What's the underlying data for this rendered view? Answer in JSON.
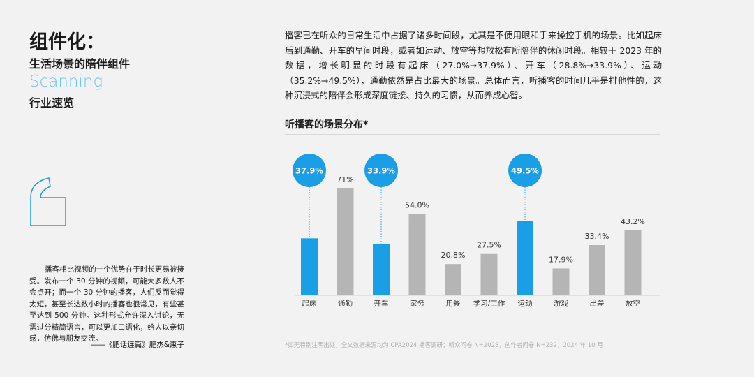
{
  "header": {
    "title": "组件化：",
    "subtitle": "生活场景的陪伴组件",
    "section_en": "Scanning",
    "section": "行业速览"
  },
  "quote": {
    "text": "播客相比视频的一个优势在于时长更易被接受。发布一个 30 分钟的视频，可能大多数人不会点开；而一个 30 分钟的播客，人们反而觉得太短，甚至长达数小时的播客也很常见，有些甚至达到 500 分钟。这种形式允许深入讨论，无需过分精简语言，可以更加口语化，给人以亲切感，仿佛与朋友交流。",
    "source": "——《肥话连篇》肥杰&惠子"
  },
  "body": "播客已在听众的日常生活中占据了诸多时间段，尤其是不便用眼和手来操控手机的场景。比如起床后到通勤、开车的早间时段，或者如运动、放空等想放松有所陪伴的休闲时段。相较于 2023 年的数据，增长明显的时段有起床（27.0%→37.9%）、开车（28.8%→33.9%）、运动（35.2%→49.5%），通勤依然是占比最大的场景。总体而言，听播客的时间几乎是排他性的，这种沉浸式的陪伴会形成深度链接、持久的习惯，从而养成心智。",
  "footnote": "*如无特别注明出处，全文数据来源均为 CPA2024 播客调研；听众问卷 N=2028，创作者问卷 N=232，2024 年 10 月",
  "chart_data": {
    "type": "bar",
    "title": "听播客的场景分布*",
    "categories": [
      "起床",
      "通勤",
      "开车",
      "家务",
      "用餐",
      "学习/工作",
      "运动",
      "游戏",
      "出差",
      "放空"
    ],
    "values": [
      37.9,
      71,
      33.9,
      54.0,
      20.8,
      27.5,
      49.5,
      17.9,
      33.4,
      43.2
    ],
    "value_labels": [
      "37.9%",
      "71%",
      "33.9%",
      "54.0%",
      "20.8%",
      "27.5%",
      "49.5%",
      "17.9%",
      "33.4%",
      "43.2%"
    ],
    "colors": [
      "#1a9fe6",
      "#b5b5b5",
      "#1a9fe6",
      "#b5b5b5",
      "#b5b5b5",
      "#b5b5b5",
      "#1a9fe6",
      "#b5b5b5",
      "#b5b5b5",
      "#b5b5b5"
    ],
    "highlight_color": "#1a9fe6"
  }
}
